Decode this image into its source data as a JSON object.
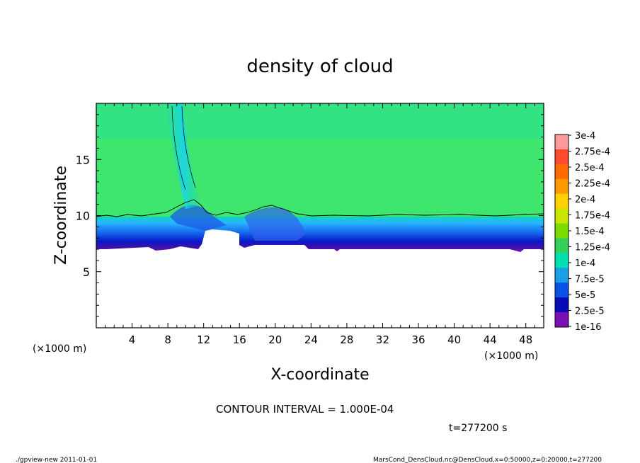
{
  "chart_data": {
    "type": "heatmap",
    "title": "density of cloud",
    "xlabel": "X-coordinate",
    "ylabel": "Z-coordinate",
    "x_unit": "(×1000 m)",
    "y_unit": "(×1000 m)",
    "xlim": [
      0,
      50
    ],
    "ylim": [
      0,
      20
    ],
    "x_ticks": [
      4,
      8,
      12,
      16,
      20,
      24,
      28,
      32,
      36,
      40,
      44,
      48
    ],
    "y_ticks": [
      5,
      10,
      15
    ],
    "cloud_base_km": 7.3,
    "cloud_top_contour_km": 9.8,
    "contour_level": "1.000E-04",
    "colorbar": {
      "labels": [
        "3e-4",
        "2.75e-4",
        "2.5e-4",
        "2.25e-4",
        "2e-4",
        "1.75e-4",
        "1.5e-4",
        "1.25e-4",
        "1e-4",
        "7.5e-5",
        "5e-5",
        "2.5e-5",
        "1e-16"
      ],
      "colors": [
        "#ff9a9a",
        "#ff4b2d",
        "#ff6a00",
        "#ff9a00",
        "#ffd200",
        "#c8e600",
        "#7cdc00",
        "#33d05a",
        "#00e0b0",
        "#1a9ee8",
        "#0a52e6",
        "#0a0ab4",
        "#7a10b4"
      ]
    },
    "annotation": "CONTOUR INTERVAL = 1.000E-04",
    "time": "t=277200 s"
  },
  "footer": {
    "left": "./gpview-new  2011-01-01",
    "right": "MarsCond_DensCloud.nc@DensCloud,x=0:50000,z=0:20000,t=277200"
  }
}
